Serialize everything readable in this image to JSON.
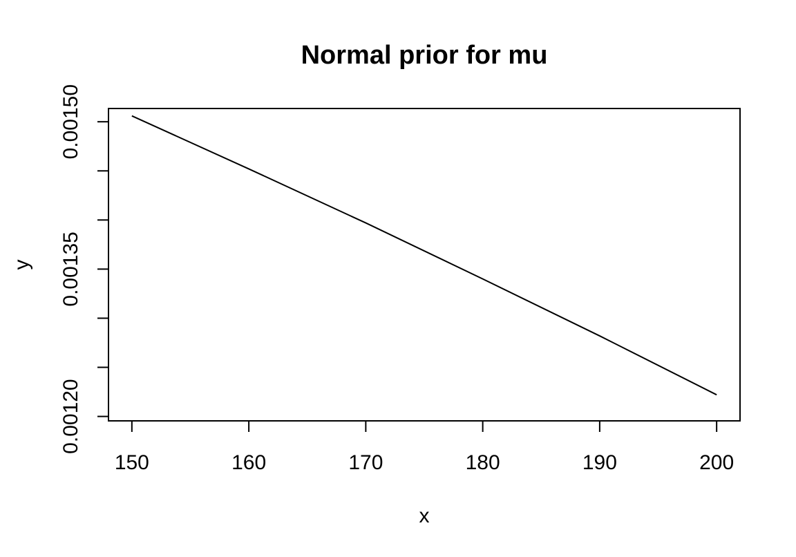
{
  "chart_data": {
    "type": "line",
    "title": "Normal prior for mu",
    "xlabel": "x",
    "ylabel": "y",
    "xlim": [
      148,
      202
    ],
    "ylim": [
      0.0011955,
      0.0015135
    ],
    "x_ticks": [
      150,
      160,
      170,
      180,
      190,
      200
    ],
    "x_tick_labels": [
      "150",
      "160",
      "170",
      "180",
      "190",
      "200"
    ],
    "y_ticks": [
      0.0012,
      0.00125,
      0.0013,
      0.00135,
      0.0014,
      0.00145,
      0.0015
    ],
    "y_tick_labels": [
      "0.00120",
      "",
      "",
      "0.00135",
      "",
      "",
      "0.00150"
    ],
    "grid": false,
    "legend": "none",
    "series": [
      {
        "x": [
          150,
          160,
          170,
          180,
          190,
          200
        ],
        "y": [
          0.001506,
          0.001452,
          0.001397,
          0.00134,
          0.001282,
          0.001222
        ]
      }
    ]
  }
}
